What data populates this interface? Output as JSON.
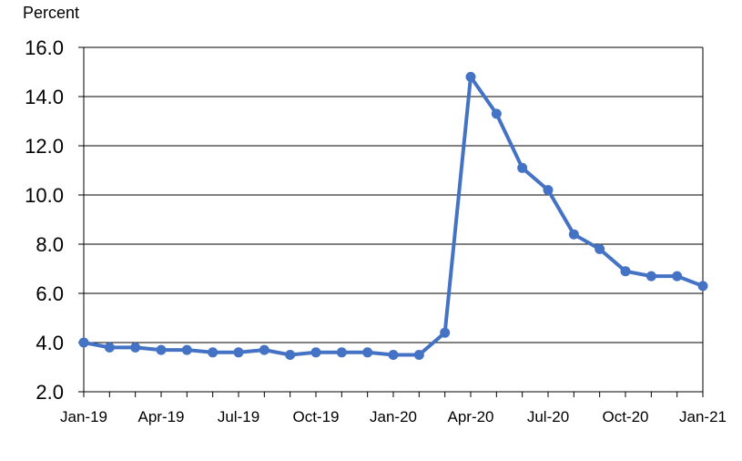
{
  "chart_data": {
    "type": "line",
    "title": "",
    "ylabel": "Percent",
    "xlabel": "",
    "ylim": [
      2.0,
      16.0
    ],
    "yticks": [
      "2.0",
      "4.0",
      "6.0",
      "8.0",
      "10.0",
      "12.0",
      "14.0",
      "16.0"
    ],
    "xtick_labels": [
      "Jan-19",
      "Apr-19",
      "Jul-19",
      "Oct-19",
      "Jan-20",
      "Apr-20",
      "Jul-20",
      "Oct-20",
      "Jan-21"
    ],
    "grid": "horizontal",
    "line_color": "#4472C4",
    "categories": [
      "Jan-19",
      "Feb-19",
      "Mar-19",
      "Apr-19",
      "May-19",
      "Jun-19",
      "Jul-19",
      "Aug-19",
      "Sep-19",
      "Oct-19",
      "Nov-19",
      "Dec-19",
      "Jan-20",
      "Feb-20",
      "Mar-20",
      "Apr-20",
      "May-20",
      "Jun-20",
      "Jul-20",
      "Aug-20",
      "Sep-20",
      "Oct-20",
      "Nov-20",
      "Dec-20",
      "Jan-21"
    ],
    "values": [
      4.0,
      3.8,
      3.8,
      3.7,
      3.7,
      3.6,
      3.6,
      3.7,
      3.5,
      3.6,
      3.6,
      3.6,
      3.5,
      3.5,
      4.4,
      14.8,
      13.3,
      11.1,
      10.2,
      8.4,
      7.8,
      6.9,
      6.7,
      6.7,
      6.3
    ]
  }
}
